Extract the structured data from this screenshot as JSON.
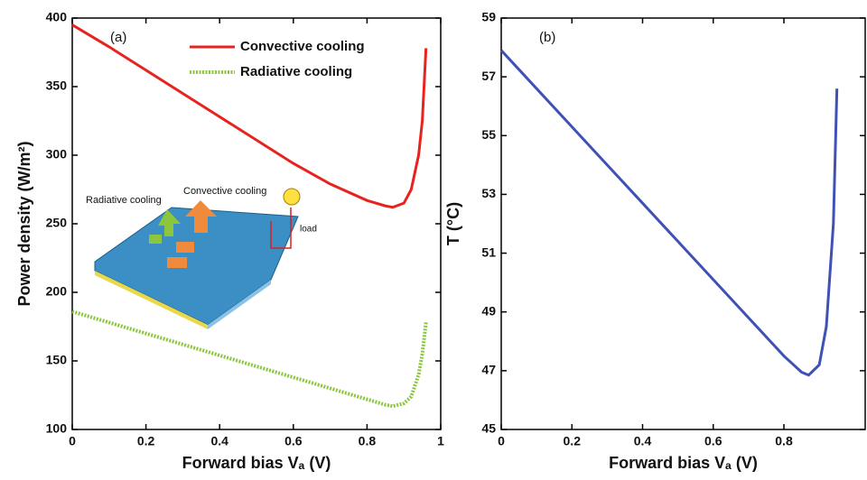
{
  "chart_data": [
    {
      "type": "line",
      "annotation": "(a)",
      "xlabel": "Forward bias Vₐ (V)",
      "ylabel": "Power density (W/m²)",
      "xlim": [
        0,
        1
      ],
      "xticks": [
        0,
        0.2,
        0.4,
        0.6,
        0.8,
        1
      ],
      "ylim": [
        100,
        400
      ],
      "yticks": [
        100,
        150,
        200,
        250,
        300,
        350,
        400
      ],
      "legend": "upper right",
      "x": [
        0,
        0.1,
        0.2,
        0.3,
        0.4,
        0.5,
        0.6,
        0.7,
        0.8,
        0.85,
        0.87,
        0.9,
        0.92,
        0.94,
        0.95,
        0.96
      ],
      "series": [
        {
          "name": "Convective cooling",
          "color": "#e8231f",
          "style": "solid",
          "values": [
            395,
            379,
            362,
            345,
            328,
            311,
            294,
            279,
            267,
            263,
            262,
            265,
            275,
            300,
            325,
            378
          ]
        },
        {
          "name": "Radiative cooling",
          "color": "#8cc63f",
          "style": "dotted",
          "values": [
            186,
            178,
            170,
            162,
            154,
            146,
            138,
            130,
            122,
            118,
            117,
            119,
            124,
            140,
            155,
            178
          ]
        }
      ],
      "inset_labels": [
        "Radiative cooling",
        "Convective cooling",
        "load"
      ]
    },
    {
      "type": "line",
      "annotation": "(b)",
      "xlabel": "Forward bias Vₐ (V)",
      "ylabel": "T (°C)",
      "xlim": [
        0,
        1.03
      ],
      "xticks": [
        0,
        0.2,
        0.4,
        0.6,
        0.8
      ],
      "ylim": [
        45,
        59
      ],
      "yticks": [
        45,
        47,
        49,
        51,
        53,
        55,
        57,
        59
      ],
      "x": [
        0,
        0.1,
        0.2,
        0.3,
        0.4,
        0.5,
        0.6,
        0.7,
        0.8,
        0.85,
        0.87,
        0.9,
        0.92,
        0.94,
        0.95
      ],
      "series": [
        {
          "color": "#3f51b5",
          "style": "solid",
          "values": [
            57.9,
            56.6,
            55.3,
            54.0,
            52.7,
            51.4,
            50.1,
            48.8,
            47.5,
            46.95,
            46.85,
            47.2,
            48.5,
            52,
            56.6
          ]
        }
      ]
    }
  ]
}
